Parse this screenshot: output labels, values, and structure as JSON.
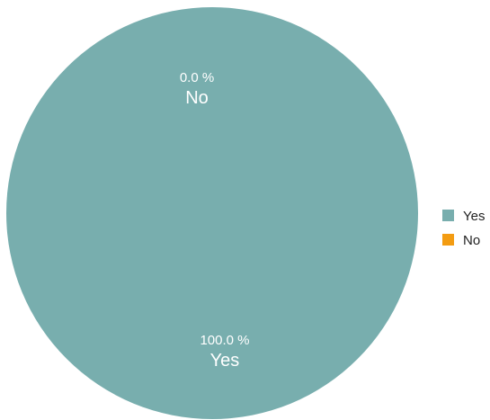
{
  "chart_data": {
    "type": "pie",
    "categories": [
      "Yes",
      "No"
    ],
    "values": [
      100.0,
      0.0
    ],
    "value_labels": [
      "100.0 %",
      "0.0 %"
    ],
    "colors": [
      "#78aeae",
      "#f39c12"
    ],
    "legend_position": "right",
    "title": ""
  }
}
